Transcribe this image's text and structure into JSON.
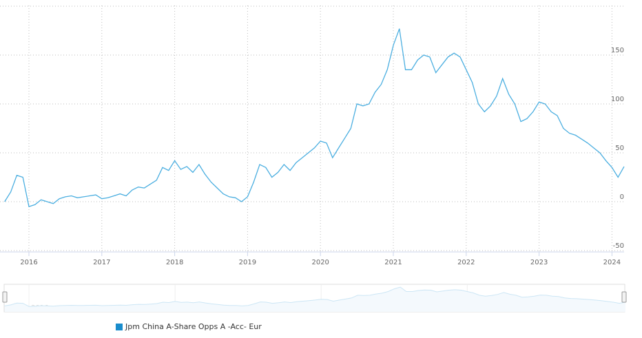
{
  "chart_data": {
    "type": "line",
    "title": "",
    "xlabel": "",
    "ylabel": "",
    "ylim": [
      -50,
      200
    ],
    "yticks": [
      -50,
      0,
      50,
      100,
      150
    ],
    "xticks": [
      "2016",
      "2017",
      "2018",
      "2019",
      "2020",
      "2021",
      "2022",
      "2023",
      "2024"
    ],
    "navigator_ticks": [
      "2016",
      "2018",
      "2020",
      "2022"
    ],
    "grid": true,
    "legend_position": "bottom",
    "series": [
      {
        "name": "Jpm China A-Share Opps A -Acc- Eur",
        "color": "#4aaee0",
        "x": [
          "2015-09",
          "2015-10",
          "2015-11",
          "2015-12",
          "2016-01",
          "2016-02",
          "2016-03",
          "2016-04",
          "2016-05",
          "2016-06",
          "2016-07",
          "2016-08",
          "2016-09",
          "2016-10",
          "2016-11",
          "2016-12",
          "2017-01",
          "2017-02",
          "2017-03",
          "2017-04",
          "2017-05",
          "2017-06",
          "2017-07",
          "2017-08",
          "2017-09",
          "2017-10",
          "2017-11",
          "2017-12",
          "2018-01",
          "2018-02",
          "2018-03",
          "2018-04",
          "2018-05",
          "2018-06",
          "2018-07",
          "2018-08",
          "2018-09",
          "2018-10",
          "2018-11",
          "2018-12",
          "2019-01",
          "2019-02",
          "2019-03",
          "2019-04",
          "2019-05",
          "2019-06",
          "2019-07",
          "2019-08",
          "2019-09",
          "2019-10",
          "2019-11",
          "2019-12",
          "2020-01",
          "2020-02",
          "2020-03",
          "2020-04",
          "2020-05",
          "2020-06",
          "2020-07",
          "2020-08",
          "2020-09",
          "2020-10",
          "2020-11",
          "2020-12",
          "2021-01",
          "2021-02",
          "2021-03",
          "2021-04",
          "2021-05",
          "2021-06",
          "2021-07",
          "2021-08",
          "2021-09",
          "2021-10",
          "2021-11",
          "2021-12",
          "2022-01",
          "2022-02",
          "2022-03",
          "2022-04",
          "2022-05",
          "2022-06",
          "2022-07",
          "2022-08",
          "2022-09",
          "2022-10",
          "2022-11",
          "2022-12",
          "2023-01",
          "2023-02",
          "2023-03",
          "2023-04",
          "2023-05",
          "2023-06",
          "2023-07",
          "2023-08",
          "2023-09",
          "2023-10",
          "2023-11",
          "2023-12",
          "2024-01",
          "2024-02",
          "2024-03"
        ],
        "values": [
          0,
          10,
          27,
          25,
          -5,
          -3,
          2,
          0,
          -2,
          3,
          5,
          6,
          4,
          5,
          6,
          7,
          3,
          4,
          6,
          8,
          6,
          12,
          15,
          14,
          18,
          22,
          35,
          32,
          42,
          33,
          36,
          30,
          38,
          28,
          20,
          14,
          8,
          5,
          4,
          0,
          5,
          20,
          38,
          35,
          25,
          30,
          38,
          32,
          40,
          45,
          50,
          55,
          62,
          60,
          45,
          55,
          65,
          75,
          100,
          98,
          100,
          112,
          120,
          135,
          160,
          177,
          135,
          135,
          145,
          150,
          148,
          132,
          140,
          148,
          152,
          148,
          135,
          122,
          100,
          92,
          98,
          108,
          126,
          110,
          100,
          82,
          85,
          92,
          102,
          100,
          92,
          88,
          75,
          70,
          68,
          64,
          60,
          55,
          50,
          42,
          35,
          25,
          36
        ]
      }
    ]
  }
}
